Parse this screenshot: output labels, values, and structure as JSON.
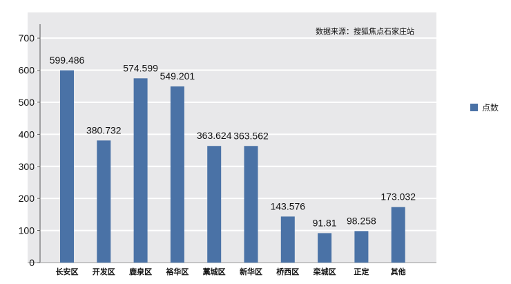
{
  "chart_data": {
    "type": "bar",
    "title": "",
    "source_note": "数据来源：搜狐焦点石家庄站",
    "categories": [
      "长安区",
      "开发区",
      "鹿泉区",
      "裕华区",
      "藁城区",
      "新华区",
      "桥西区",
      "栾城区",
      "正定",
      "其他"
    ],
    "series": [
      {
        "name": "点数",
        "values": [
          599.486,
          380.732,
          574.599,
          549.201,
          363.624,
          363.562,
          143.576,
          91.81,
          98.258,
          173.032
        ],
        "labels": [
          "599.486",
          "380.732",
          "574.599",
          "549.201",
          "363.624",
          "363.562",
          "143.576",
          "91.81",
          "98.258",
          "173.032"
        ],
        "color": "#4a72a6"
      }
    ],
    "yticks": [
      0,
      100,
      200,
      300,
      400,
      500,
      600,
      700
    ],
    "ylim": [
      0,
      780
    ],
    "xlabel": "",
    "ylabel": "",
    "grid": true,
    "legend_position": "right",
    "background_color": "#e8e8ea"
  }
}
